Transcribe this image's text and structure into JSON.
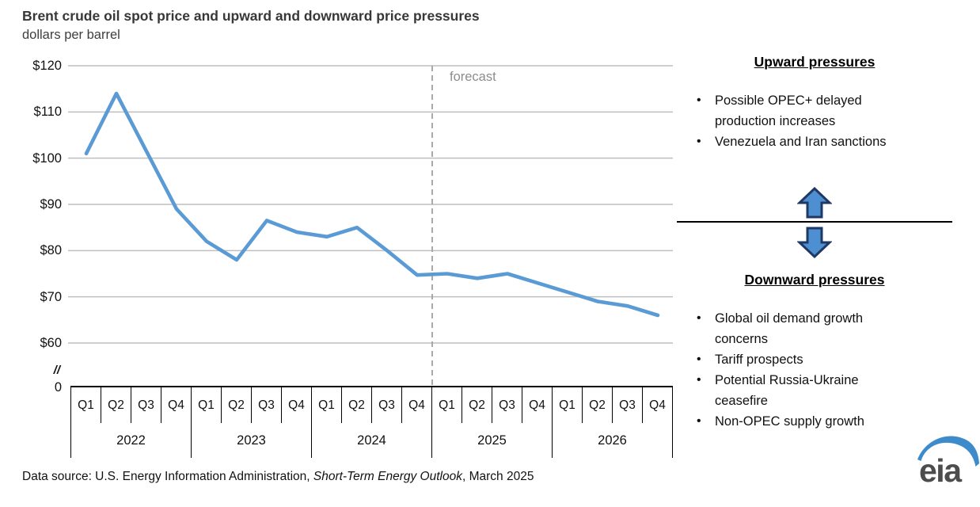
{
  "header": {
    "title": "Brent crude oil spot price and upward and downward price pressures",
    "subtitle": "dollars per barrel"
  },
  "chart_data": {
    "type": "line",
    "title": "Brent crude oil spot price and upward and downward price pressures",
    "ylabel": "dollars per barrel",
    "xlabel": "",
    "grid": true,
    "ylim_display": [
      60,
      120
    ],
    "line_color": "#5B9BD5",
    "grid_color": "#BFBFBF",
    "axis_color": "#000000",
    "forecast_line_color": "#A0A0A0",
    "y_axis": {
      "ticks": [
        {
          "label": "$120",
          "value": 120
        },
        {
          "label": "$110",
          "value": 110
        },
        {
          "label": "$100",
          "value": 100
        },
        {
          "label": "$90",
          "value": 90
        },
        {
          "label": "$80",
          "value": 80
        },
        {
          "label": "$70",
          "value": 70
        },
        {
          "label": "$60",
          "value": 60
        }
      ],
      "break_label": "//",
      "zero_label": "0"
    },
    "quarters": [
      "Q1",
      "Q2",
      "Q3",
      "Q4",
      "Q1",
      "Q2",
      "Q3",
      "Q4",
      "Q1",
      "Q2",
      "Q3",
      "Q4",
      "Q1",
      "Q2",
      "Q3",
      "Q4",
      "Q1",
      "Q2",
      "Q3",
      "Q4"
    ],
    "years": [
      "2022",
      "2023",
      "2024",
      "2025",
      "2026"
    ],
    "series": [
      {
        "name": "Brent crude oil spot price",
        "values": [
          101,
          114,
          101.5,
          89,
          82,
          78,
          86.5,
          84,
          83,
          85,
          80,
          74.7,
          75,
          74,
          75,
          73,
          71,
          69,
          68,
          66
        ]
      }
    ],
    "points": [
      {
        "year": "2022",
        "quarter": "Q1",
        "value": 101
      },
      {
        "year": "2022",
        "quarter": "Q2",
        "value": 114
      },
      {
        "year": "2022",
        "quarter": "Q3",
        "value": 101.5
      },
      {
        "year": "2022",
        "quarter": "Q4",
        "value": 89
      },
      {
        "year": "2023",
        "quarter": "Q1",
        "value": 82
      },
      {
        "year": "2023",
        "quarter": "Q2",
        "value": 78
      },
      {
        "year": "2023",
        "quarter": "Q3",
        "value": 86.5
      },
      {
        "year": "2023",
        "quarter": "Q4",
        "value": 84
      },
      {
        "year": "2024",
        "quarter": "Q1",
        "value": 83
      },
      {
        "year": "2024",
        "quarter": "Q2",
        "value": 85
      },
      {
        "year": "2024",
        "quarter": "Q3",
        "value": 80
      },
      {
        "year": "2024",
        "quarter": "Q4",
        "value": 74.7
      },
      {
        "year": "2025",
        "quarter": "Q1",
        "value": 75
      },
      {
        "year": "2025",
        "quarter": "Q2",
        "value": 74
      },
      {
        "year": "2025",
        "quarter": "Q3",
        "value": 75
      },
      {
        "year": "2025",
        "quarter": "Q4",
        "value": 73
      },
      {
        "year": "2026",
        "quarter": "Q1",
        "value": 71
      },
      {
        "year": "2026",
        "quarter": "Q2",
        "value": 69
      },
      {
        "year": "2026",
        "quarter": "Q3",
        "value": 68
      },
      {
        "year": "2026",
        "quarter": "Q4",
        "value": 66
      }
    ],
    "forecast": {
      "label": "forecast",
      "boundary_index": 12,
      "start": "2025 Q1"
    }
  },
  "pressures": {
    "upward": {
      "heading": "Upward pressures",
      "items": [
        "Possible OPEC+ delayed production increases",
        "Venezuela and Iran sanctions"
      ]
    },
    "downward": {
      "heading": "Downward pressures",
      "items": [
        "Global oil demand growth concerns",
        "Tariff prospects",
        "Potential Russia-Ukraine ceasefire",
        "Non-OPEC supply growth"
      ]
    },
    "arrow_fill": "#4D8FD1",
    "arrow_stroke": "#1F3864"
  },
  "footer": {
    "prefix": "Data source: U.S. Energy Information Administration, ",
    "publication": "Short-Term Energy Outlook",
    "suffix": ", March 2025"
  },
  "logo": {
    "text": "eia",
    "swoosh_color": "#3E8BCB",
    "text_color": "#4D4D4D"
  }
}
